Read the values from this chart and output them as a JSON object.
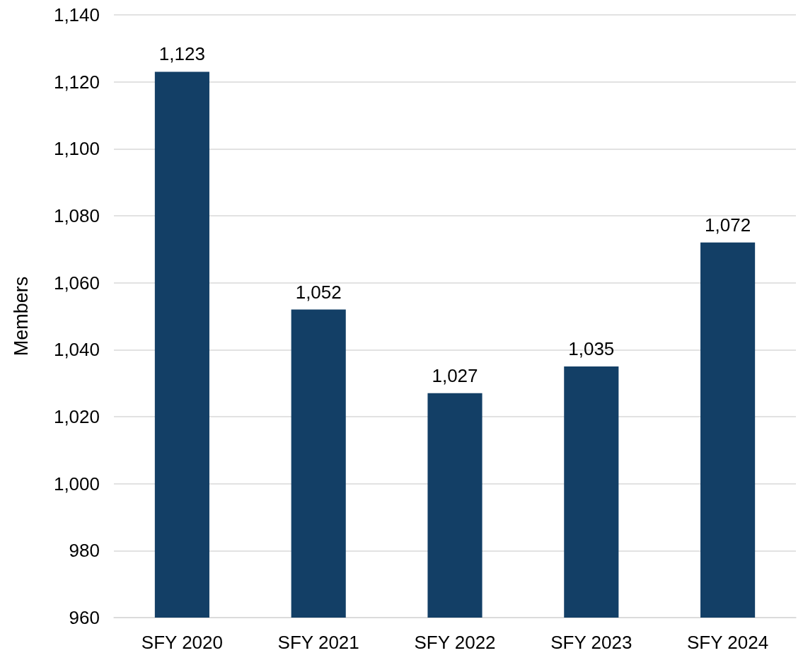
{
  "chart_data": {
    "type": "bar",
    "ylabel": "Members",
    "categories": [
      "SFY 2020",
      "SFY 2021",
      "SFY 2022",
      "SFY 2023",
      "SFY 2024"
    ],
    "values": [
      1123,
      1052,
      1027,
      1035,
      1072
    ],
    "value_labels": [
      "1,123",
      "1,052",
      "1,027",
      "1,035",
      "1,072"
    ],
    "color": "#133f66",
    "ylim": [
      960,
      1140
    ],
    "yticks": [
      {
        "value": 960,
        "label": "960"
      },
      {
        "value": 980,
        "label": "980"
      },
      {
        "value": 1000,
        "label": "1,000"
      },
      {
        "value": 1020,
        "label": "1,020"
      },
      {
        "value": 1040,
        "label": "1,040"
      },
      {
        "value": 1060,
        "label": "1,060"
      },
      {
        "value": 1080,
        "label": "1,080"
      },
      {
        "value": 1100,
        "label": "1,100"
      },
      {
        "value": 1120,
        "label": "1,120"
      },
      {
        "value": 1140,
        "label": "1,140"
      }
    ],
    "grid": "y"
  }
}
